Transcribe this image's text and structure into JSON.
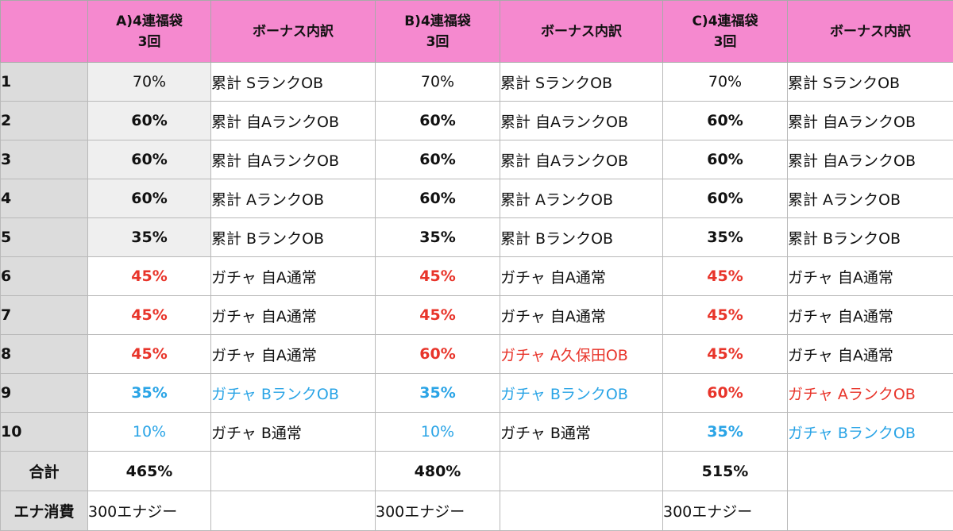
{
  "colors": {
    "header_bg": "#f589cf",
    "index_bg": "#dcdcdc",
    "red": "#e8342a",
    "blue": "#2aa4e6"
  },
  "header": {
    "corner": "",
    "a_line1": "A)4連福袋",
    "a_line2": "3回",
    "b_line1": "B)4連福袋",
    "b_line2": "3回",
    "c_line1": "C)4連福袋",
    "c_line2": "3回",
    "bonus": "ボーナス内訳"
  },
  "rows": [
    {
      "no": "1",
      "a": "70%",
      "a_bonus": "累計 SランクOB",
      "b": "70%",
      "b_bonus": "累計 SランクOB",
      "c": "70%",
      "c_bonus": "累計 SランクOB"
    },
    {
      "no": "2",
      "a": "60%",
      "a_bonus": "累計 自AランクOB",
      "b": "60%",
      "b_bonus": "累計 自AランクOB",
      "c": "60%",
      "c_bonus": "累計 自AランクOB"
    },
    {
      "no": "3",
      "a": "60%",
      "a_bonus": "累計 自AランクOB",
      "b": "60%",
      "b_bonus": "累計 自AランクOB",
      "c": "60%",
      "c_bonus": "累計 自AランクOB"
    },
    {
      "no": "4",
      "a": "60%",
      "a_bonus": "累計 AランクOB",
      "b": "60%",
      "b_bonus": "累計 AランクOB",
      "c": "60%",
      "c_bonus": "累計 AランクOB"
    },
    {
      "no": "5",
      "a": "35%",
      "a_bonus": "累計 BランクOB",
      "b": "35%",
      "b_bonus": "累計 BランクOB",
      "c": "35%",
      "c_bonus": "累計 BランクOB"
    },
    {
      "no": "6",
      "a": "45%",
      "a_bonus": "ガチャ 自A通常",
      "b": "45%",
      "b_bonus": "ガチャ 自A通常",
      "c": "45%",
      "c_bonus": "ガチャ 自A通常"
    },
    {
      "no": "7",
      "a": "45%",
      "a_bonus": "ガチャ 自A通常",
      "b": "45%",
      "b_bonus": "ガチャ 自A通常",
      "c": "45%",
      "c_bonus": "ガチャ 自A通常"
    },
    {
      "no": "8",
      "a": "45%",
      "a_bonus": "ガチャ 自A通常",
      "b": "60%",
      "b_bonus": "ガチャ A久保田OB",
      "c": "45%",
      "c_bonus": "ガチャ 自A通常"
    },
    {
      "no": "9",
      "a": "35%",
      "a_bonus": "ガチャ BランクOB",
      "b": "35%",
      "b_bonus": "ガチャ BランクOB",
      "c": "60%",
      "c_bonus": "ガチャ AランクOB"
    },
    {
      "no": "10",
      "a": "10%",
      "a_bonus": "ガチャ B通常",
      "b": "10%",
      "b_bonus": "ガチャ B通常",
      "c": "35%",
      "c_bonus": "ガチャ BランクOB"
    }
  ],
  "totals": {
    "label": "合計",
    "a": "465%",
    "b": "480%",
    "c": "515%"
  },
  "energy": {
    "label": "エナ消費",
    "a": "300エナジー",
    "b": "300エナジー",
    "c": "300エナジー"
  }
}
